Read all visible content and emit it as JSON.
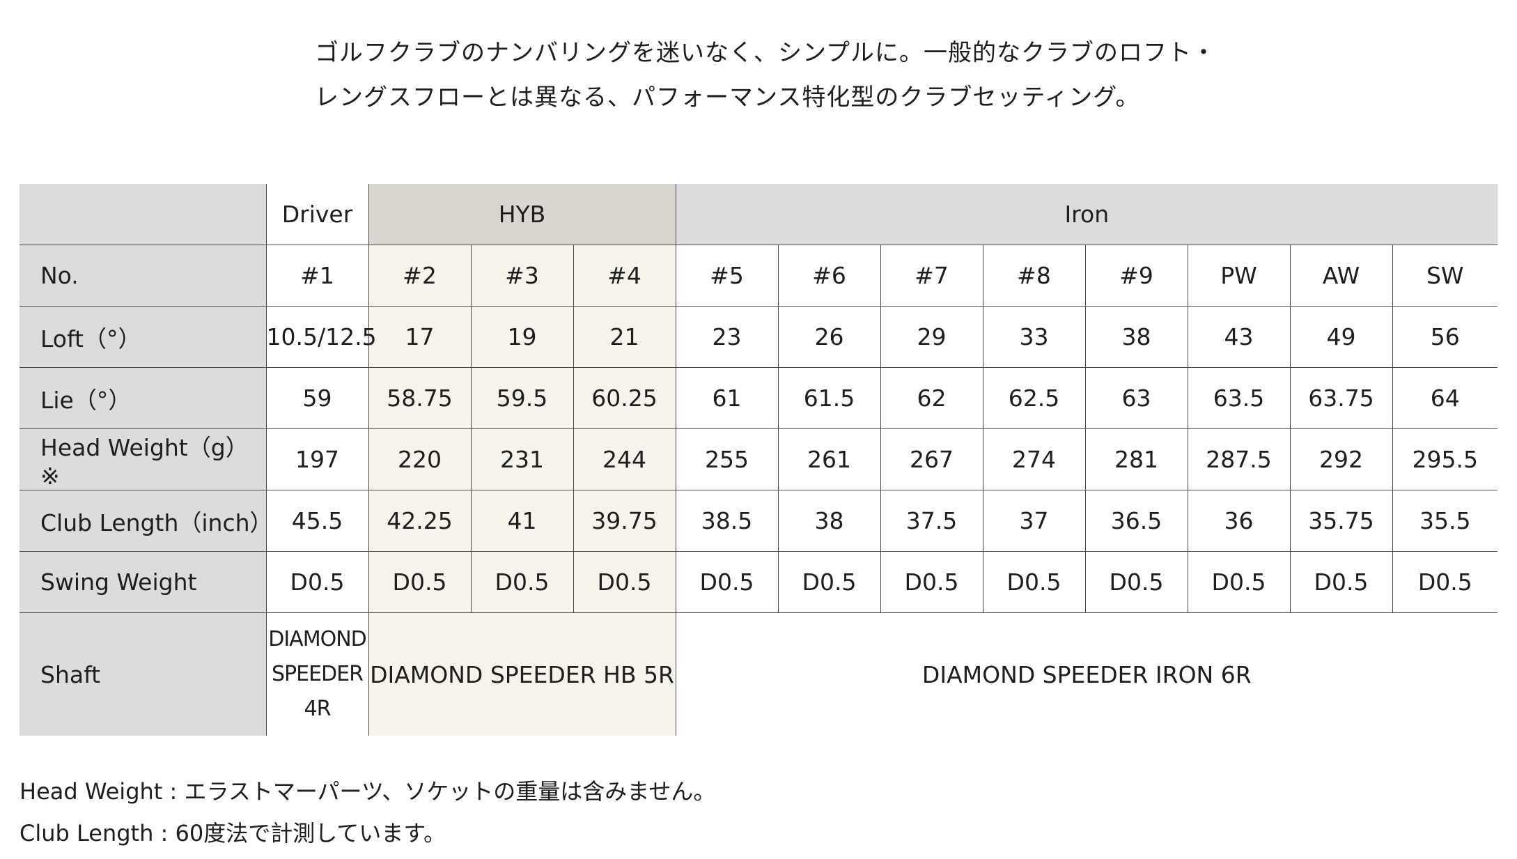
{
  "intro": {
    "line1": "ゴルフクラブのナンバリングを迷いなく、シンプルに。一般的なクラブのロフト・",
    "line2": "レングスフローとは異なる、パフォーマンス特化型のクラブセッティング。"
  },
  "table": {
    "groups": {
      "driver": "Driver",
      "hyb": "HYB",
      "iron": "Iron"
    },
    "rows": {
      "no": {
        "label": "No.",
        "values": [
          "#1",
          "#2",
          "#3",
          "#4",
          "#5",
          "#6",
          "#7",
          "#8",
          "#9",
          "PW",
          "AW",
          "SW"
        ]
      },
      "loft": {
        "label": "Loft（°）",
        "values": [
          "10.5/12.5",
          "17",
          "19",
          "21",
          "23",
          "26",
          "29",
          "33",
          "38",
          "43",
          "49",
          "56"
        ]
      },
      "lie": {
        "label": "Lie（°）",
        "values": [
          "59",
          "58.75",
          "59.5",
          "60.25",
          "61",
          "61.5",
          "62",
          "62.5",
          "63",
          "63.5",
          "63.75",
          "64"
        ]
      },
      "head_weight": {
        "label": "Head Weight（g）※",
        "values": [
          "197",
          "220",
          "231",
          "244",
          "255",
          "261",
          "267",
          "274",
          "281",
          "287.5",
          "292",
          "295.5"
        ]
      },
      "club_length": {
        "label": "Club Length（inch）",
        "values": [
          "45.5",
          "42.25",
          "41",
          "39.75",
          "38.5",
          "38",
          "37.5",
          "37",
          "36.5",
          "36",
          "35.75",
          "35.5"
        ]
      },
      "swing_weight": {
        "label": "Swing Weight",
        "values": [
          "D0.5",
          "D0.5",
          "D0.5",
          "D0.5",
          "D0.5",
          "D0.5",
          "D0.5",
          "D0.5",
          "D0.5",
          "D0.5",
          "D0.5",
          "D0.5"
        ]
      },
      "shaft": {
        "label": "Shaft",
        "driver_lines": [
          "DIAMOND",
          "SPEEDER",
          "4R"
        ],
        "hyb": "DIAMOND SPEEDER HB 5R",
        "iron": "DIAMOND SPEEDER IRON 6R"
      }
    }
  },
  "notes": {
    "head_weight": "Head Weight : エラストマーパーツ、ソケットの重量は含みません。",
    "club_length": "Club Length : 60度法で計測しています。"
  },
  "colors": {
    "label_bg": "#dcdcdc",
    "hyb_header_bg": "#d8d6cf",
    "hyb_cell_bg": "#f5f3ea",
    "border": "#4a4a4a"
  }
}
